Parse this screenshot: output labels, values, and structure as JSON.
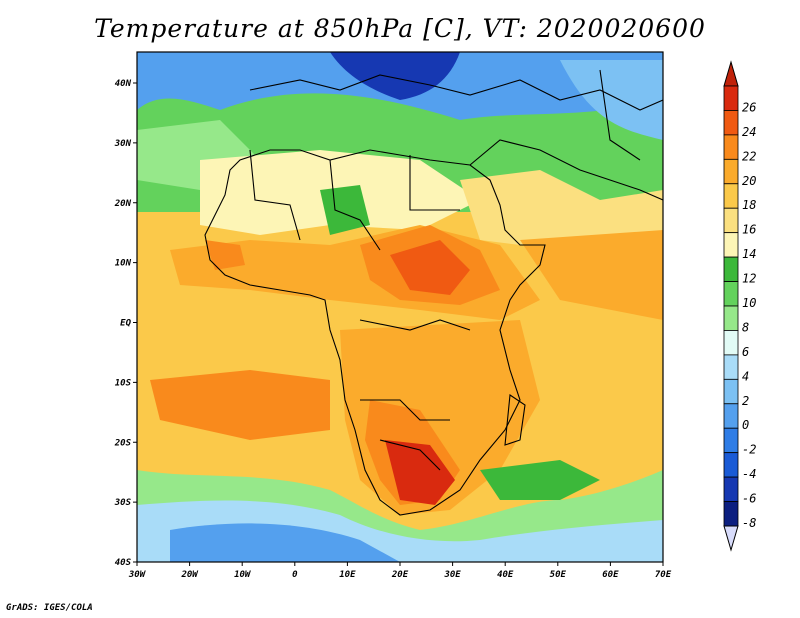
{
  "title": "Temperature at 850hPa [C], VT: 2020020600",
  "footer": "GrADS: IGES/COLA",
  "map": {
    "lon_ticks": [
      "30W",
      "20W",
      "10W",
      "0",
      "10E",
      "20E",
      "30E",
      "40E",
      "50E",
      "60E",
      "70E"
    ],
    "lat_ticks": [
      "40N",
      "30N",
      "20N",
      "10N",
      "EQ",
      "10S",
      "20S",
      "30S",
      "40S"
    ]
  },
  "colorbar": {
    "unit": "C",
    "labels": [
      "26",
      "24",
      "22",
      "20",
      "18",
      "16",
      "14",
      "12",
      "10",
      "8",
      "6",
      "4",
      "2",
      "0",
      "-2",
      "-4",
      "-6",
      "-8"
    ],
    "colors": [
      "#d92a0f",
      "#f05a12",
      "#f98a1c",
      "#fbab2c",
      "#fbc94a",
      "#fbe080",
      "#fdf5b6",
      "#3cb83a",
      "#63d25c",
      "#96e88a",
      "#e2fbf6",
      "#a9dcf8",
      "#7cc1f3",
      "#54a0ee",
      "#2f7de6",
      "#1a5bd6",
      "#1638b2",
      "#0c1f80"
    ],
    "over_color": "#c0220a",
    "under_color": "#d8dcfb"
  }
}
